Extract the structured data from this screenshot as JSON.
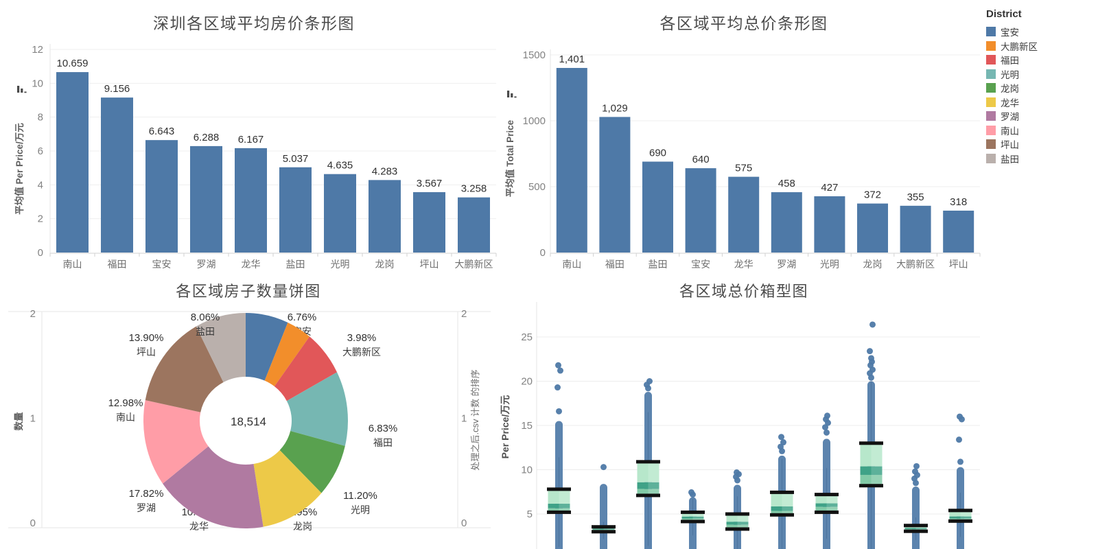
{
  "legend": {
    "title": "District",
    "items": [
      {
        "label": "宝安",
        "color": "#4e79a7"
      },
      {
        "label": "大鹏新区",
        "color": "#f28e2b"
      },
      {
        "label": "福田",
        "color": "#e15759"
      },
      {
        "label": "光明",
        "color": "#76b7b2"
      },
      {
        "label": "龙岗",
        "color": "#59a14f"
      },
      {
        "label": "龙华",
        "color": "#edc948"
      },
      {
        "label": "罗湖",
        "color": "#b07aa1"
      },
      {
        "label": "南山",
        "color": "#ff9da7"
      },
      {
        "label": "坪山",
        "color": "#9c755f"
      },
      {
        "label": "盐田",
        "color": "#bab0ac"
      }
    ]
  },
  "chart_data": [
    {
      "type": "bar",
      "title": "深圳各区域平均房价条形图",
      "y_axis_label": "平均值 Per Price/万元",
      "sort_icon": "sort-descending-icon",
      "ylim": [
        0,
        12
      ],
      "y_ticks": [
        0,
        2,
        4,
        6,
        8,
        10,
        12
      ],
      "grid": true,
      "bar_color": "#4e79a7",
      "categories": [
        "南山",
        "福田",
        "宝安",
        "罗湖",
        "龙华",
        "盐田",
        "光明",
        "龙岗",
        "坪山",
        "大鹏新区"
      ],
      "values": [
        10.659,
        9.156,
        6.643,
        6.288,
        6.167,
        5.037,
        4.635,
        4.283,
        3.567,
        3.258
      ],
      "value_labels": [
        "10.659",
        "9.156",
        "6.643",
        "6.288",
        "6.167",
        "5.037",
        "4.635",
        "4.283",
        "3.567",
        "3.258"
      ]
    },
    {
      "type": "bar",
      "title": "各区域平均总价条形图",
      "y_axis_label": "平均值 Total Price",
      "sort_icon": "sort-descending-icon",
      "ylim": [
        0,
        1500
      ],
      "y_ticks": [
        0,
        500,
        1000,
        1500
      ],
      "grid": true,
      "bar_color": "#4e79a7",
      "categories": [
        "南山",
        "福田",
        "盐田",
        "宝安",
        "龙华",
        "罗湖",
        "光明",
        "龙岗",
        "大鹏新区",
        "坪山"
      ],
      "values": [
        1401,
        1029,
        690,
        640,
        575,
        458,
        427,
        372,
        355,
        318
      ],
      "value_labels": [
        "1,401",
        "1,029",
        "690",
        "640",
        "575",
        "458",
        "427",
        "372",
        "355",
        "318"
      ]
    },
    {
      "type": "pie",
      "title": "各区域房子数量饼图",
      "left_axis_label": "数量",
      "right_axis_label": "处理之后.csv 计数 的排序",
      "axis_ticks": [
        2,
        1,
        0
      ],
      "center_total": "18,514",
      "slices": [
        {
          "label": "宝安",
          "pct": 6.76,
          "pct_label": "6.76%",
          "color": "#4e79a7"
        },
        {
          "label": "大鹏新区",
          "pct": 3.98,
          "pct_label": "3.98%",
          "color": "#f28e2b"
        },
        {
          "label": "福田",
          "pct": 6.83,
          "pct_label": "6.83%",
          "color": "#e15759"
        },
        {
          "label": "光明",
          "pct": 11.2,
          "pct_label": "11.20%",
          "color": "#76b7b2"
        },
        {
          "label": "龙岗",
          "pct": 7.95,
          "pct_label": "7.95%",
          "color": "#59a14f"
        },
        {
          "label": "龙华",
          "pct": 10.53,
          "pct_label": "10.53%",
          "color": "#edc948"
        },
        {
          "label": "罗湖",
          "pct": 17.82,
          "pct_label": "17.82%",
          "color": "#b07aa1"
        },
        {
          "label": "南山",
          "pct": 12.98,
          "pct_label": "12.98%",
          "color": "#ff9da7"
        },
        {
          "label": "坪山",
          "pct": 13.9,
          "pct_label": "13.90%",
          "color": "#9c755f"
        },
        {
          "label": "盐田",
          "pct": 8.06,
          "pct_label": "8.06%",
          "color": "#bab0ac"
        }
      ]
    },
    {
      "type": "box",
      "title": "各区域总价箱型图",
      "y_axis_label": "Per Price/万元",
      "y_ticks": [
        5,
        10,
        15,
        20,
        25
      ],
      "point_color": "#4e79a7",
      "box_colors": {
        "upper": "#b7e7cb",
        "median_band": "#3fa287",
        "lower": "#82caa7",
        "caps": "#111111"
      },
      "boxes": [
        {
          "q1": 5.2,
          "median": 5.9,
          "q3": 7.8,
          "whisker_high": 11.4,
          "dense_points_to": 15.5,
          "outliers": [
            16.6,
            19.3,
            21.2,
            21.8
          ]
        },
        {
          "q1": 3.0,
          "median": 3.3,
          "q3": 3.55,
          "whisker_high": 4.1,
          "dense_points_to": 8.4,
          "outliers": [
            10.3
          ]
        },
        {
          "q1": 7.1,
          "median": 8.2,
          "q3": 10.9,
          "whisker_high": 16.5,
          "dense_points_to": 18.8,
          "outliers": [
            19.2,
            19.6,
            20.0
          ]
        },
        {
          "q1": 4.15,
          "median": 4.6,
          "q3": 5.2,
          "whisker_high": 6.7,
          "dense_points_to": 6.9,
          "outliers": [
            7.2,
            7.45
          ]
        },
        {
          "q1": 3.3,
          "median": 3.95,
          "q3": 5.0,
          "whisker_high": 7.0,
          "dense_points_to": 8.3,
          "outliers": [
            8.8,
            9.2,
            9.5,
            9.7
          ]
        },
        {
          "q1": 4.9,
          "median": 5.6,
          "q3": 7.45,
          "whisker_high": 11.2,
          "dense_points_to": 11.6,
          "outliers": [
            12.1,
            12.6,
            13.1,
            13.7
          ]
        },
        {
          "q1": 5.2,
          "median": 6.0,
          "q3": 7.2,
          "whisker_high": 10.2,
          "dense_points_to": 13.5,
          "outliers": [
            14.2,
            14.8,
            15.3,
            15.7,
            16.1
          ]
        },
        {
          "q1": 8.2,
          "median": 9.9,
          "q3": 13.0,
          "whisker_high": 20.0,
          "dense_points_to": 20.0,
          "outliers": [
            20.4,
            20.9,
            21.3,
            21.8,
            22.2,
            22.6,
            23.4,
            26.4
          ]
        },
        {
          "q1": 3.05,
          "median": 3.35,
          "q3": 3.7,
          "whisker_high": 4.6,
          "dense_points_to": 8.1,
          "outliers": [
            8.5,
            9.0,
            9.4,
            9.8,
            10.4
          ]
        },
        {
          "q1": 4.2,
          "median": 4.6,
          "q3": 5.4,
          "whisker_high": 7.4,
          "dense_points_to": 10.3,
          "outliers": [
            10.9,
            13.4,
            15.7,
            16.0
          ]
        }
      ]
    }
  ]
}
